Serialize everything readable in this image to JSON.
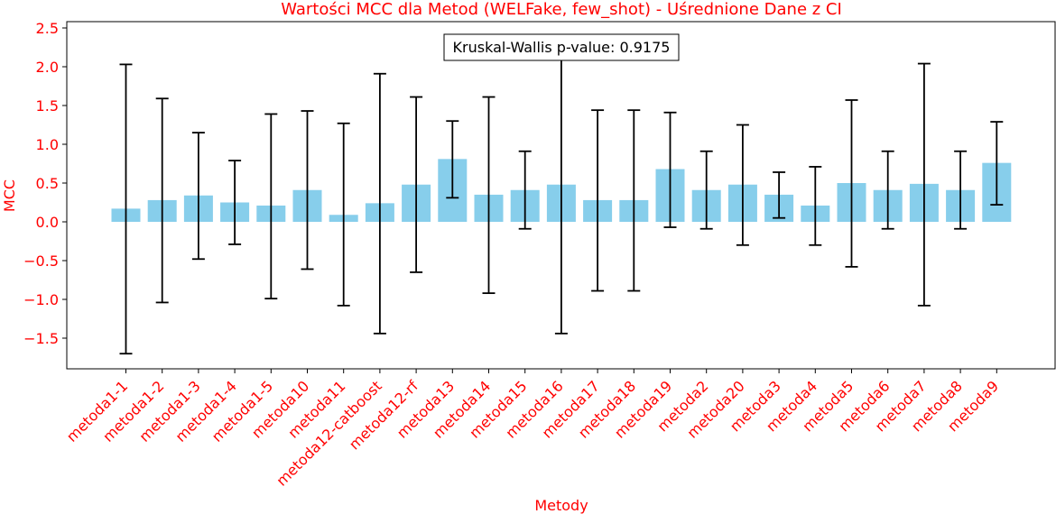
{
  "chart_data": {
    "type": "bar",
    "title": "Wartości MCC dla Metod (WELFake, few_shot) - Uśrednione Dane z CI",
    "xlabel": "Metody",
    "ylabel": "MCC",
    "ylim": [
      -1.9,
      2.6
    ],
    "yticks": [
      -1.5,
      -1.0,
      -0.5,
      0.0,
      0.5,
      1.0,
      1.5,
      2.0,
      2.5
    ],
    "ytick_labels": [
      "−1.5",
      "−1.0",
      "−0.5",
      "0.0",
      "0.5",
      "1.0",
      "1.5",
      "2.0",
      "2.5"
    ],
    "categories": [
      "metoda1-1",
      "metoda1-2",
      "metoda1-3",
      "metoda1-4",
      "metoda1-5",
      "metoda10",
      "metoda11",
      "metoda12-catboost",
      "metoda12-rf",
      "metoda13",
      "metoda14",
      "metoda15",
      "metoda16",
      "metoda17",
      "metoda18",
      "metoda19",
      "metoda2",
      "metoda20",
      "metoda3",
      "metoda4",
      "metoda5",
      "metoda6",
      "metoda7",
      "metoda8",
      "metoda9"
    ],
    "values": [
      0.17,
      0.28,
      0.34,
      0.25,
      0.21,
      0.41,
      0.09,
      0.24,
      0.48,
      0.81,
      0.35,
      0.41,
      0.48,
      0.28,
      0.28,
      0.68,
      0.41,
      0.48,
      0.35,
      0.21,
      0.5,
      0.41,
      0.49,
      0.41,
      0.76
    ],
    "ci_low": [
      -1.7,
      -1.04,
      -0.48,
      -0.29,
      -0.99,
      -0.61,
      -1.08,
      -1.44,
      -0.65,
      0.31,
      -0.92,
      -0.09,
      -1.44,
      -0.89,
      -0.89,
      -0.07,
      -0.09,
      -0.3,
      0.05,
      -0.3,
      -0.58,
      -0.09,
      -1.08,
      -0.09,
      0.22
    ],
    "ci_high": [
      2.03,
      1.59,
      1.15,
      0.79,
      1.39,
      1.43,
      1.27,
      1.91,
      1.61,
      1.3,
      1.61,
      0.91,
      2.38,
      1.44,
      1.44,
      1.41,
      0.91,
      1.25,
      0.64,
      0.71,
      1.57,
      0.91,
      2.04,
      0.91,
      1.29
    ],
    "bar_color": "#87ceeb",
    "text_color": "#ff0000",
    "annotation": "Kruskal-Wallis p-value: 0.9175",
    "grid": false
  }
}
